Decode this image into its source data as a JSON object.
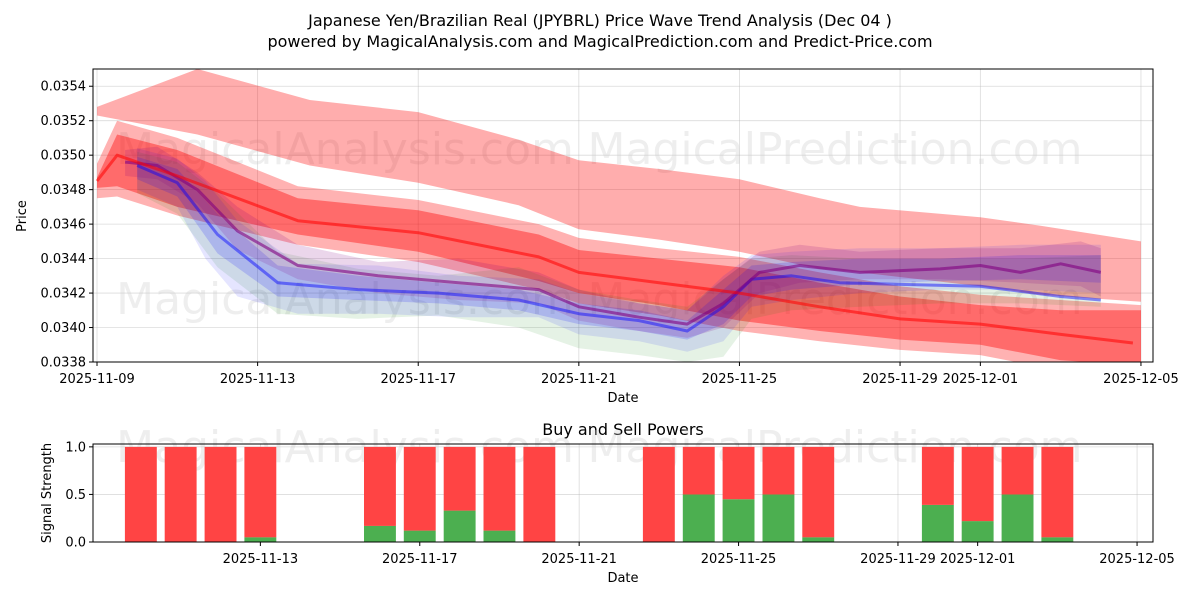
{
  "titles": {
    "line1": "Japanese Yen/Brazilian Real (JPYBRL) Price Wave Trend Analysis (Dec 04 )",
    "line2": "powered by MagicalAnalysis.com and MagicalPrediction.com and Predict-Price.com"
  },
  "watermarks": [
    "MagicalAnalysis.com",
    "MagicalPrediction.com"
  ],
  "colors": {
    "red": "#ff0000",
    "blue": "#0000ff",
    "green": "#008000",
    "purple": "#800080",
    "buy": "#4caf50",
    "sell": "#ff4444"
  },
  "chart_data": [
    {
      "type": "area",
      "title": "Japanese Yen/Brazilian Real (JPYBRL) Price Wave Trend Analysis (Dec 04 )",
      "xlabel": "Date",
      "ylabel": "Price",
      "xlim": [
        -0.1,
        26.3
      ],
      "ylim": [
        0.0338,
        0.0355
      ],
      "x_origin": "2025-11-09",
      "x_ticks": [
        {
          "day": 0,
          "label": "2025-11-09"
        },
        {
          "day": 4,
          "label": "2025-11-13"
        },
        {
          "day": 8,
          "label": "2025-11-17"
        },
        {
          "day": 12,
          "label": "2025-11-21"
        },
        {
          "day": 16,
          "label": "2025-11-25"
        },
        {
          "day": 20,
          "label": "2025-11-29"
        },
        {
          "day": 22,
          "label": "2025-12-01"
        },
        {
          "day": 26,
          "label": "2025-12-05"
        }
      ],
      "y_ticks": [
        {
          "value": 0.0338,
          "label": "0.0338"
        },
        {
          "value": 0.034,
          "label": "0.0340"
        },
        {
          "value": 0.0342,
          "label": "0.0342"
        },
        {
          "value": 0.0344,
          "label": "0.0344"
        },
        {
          "value": 0.0346,
          "label": "0.0346"
        },
        {
          "value": 0.0348,
          "label": "0.0348"
        },
        {
          "value": 0.035,
          "label": "0.0350"
        },
        {
          "value": 0.0352,
          "label": "0.0352"
        },
        {
          "value": 0.0354,
          "label": "0.0354"
        }
      ],
      "grid": true,
      "bands": [
        {
          "name": "upper red band",
          "color": "red",
          "opacity": 0.32,
          "x": [
            0,
            2.5,
            5.3,
            8,
            10.5,
            12,
            14,
            16,
            18,
            19,
            22,
            23.5,
            26
          ],
          "upper": [
            0.03528,
            0.0355,
            0.03532,
            0.03525,
            0.03509,
            0.03497,
            0.03492,
            0.03486,
            0.03475,
            0.0347,
            0.03464,
            0.03459,
            0.0345
          ],
          "lower": [
            0.03523,
            0.03512,
            0.03494,
            0.03484,
            0.03471,
            0.03457,
            0.03451,
            0.03444,
            0.03434,
            0.03432,
            0.03424,
            0.03419,
            0.03415
          ]
        },
        {
          "name": "lower red band outer",
          "color": "red",
          "opacity": 0.3,
          "x": [
            0,
            0.5,
            2,
            5,
            8,
            11,
            12,
            14,
            16,
            18,
            20,
            22,
            24,
            26
          ],
          "upper": [
            0.03495,
            0.0352,
            0.0351,
            0.03482,
            0.03474,
            0.0346,
            0.03452,
            0.03446,
            0.03441,
            0.03432,
            0.03424,
            0.03419,
            0.03416,
            0.03413
          ],
          "lower": [
            0.03475,
            0.03476,
            0.03465,
            0.03448,
            0.03438,
            0.03422,
            0.03414,
            0.03407,
            0.03398,
            0.03392,
            0.03387,
            0.03384,
            0.03375,
            0.03372
          ]
        },
        {
          "name": "lower red band inner",
          "color": "red",
          "opacity": 0.4,
          "x": [
            0,
            0.5,
            2,
            5,
            8,
            11,
            12,
            14,
            16,
            18,
            20,
            22,
            24,
            26
          ],
          "upper": [
            0.03487,
            0.03512,
            0.03503,
            0.03475,
            0.03468,
            0.03454,
            0.03445,
            0.0344,
            0.03435,
            0.03426,
            0.03418,
            0.03413,
            0.0341,
            0.0341
          ],
          "lower": [
            0.03481,
            0.03482,
            0.0347,
            0.03454,
            0.03444,
            0.03427,
            0.0342,
            0.03413,
            0.03404,
            0.03398,
            0.03393,
            0.0339,
            0.03381,
            0.03378
          ]
        },
        {
          "name": "green forecast shade",
          "color": "green",
          "opacity": 0.1,
          "x": [
            1,
            2,
            3,
            4.5,
            6.5,
            8.5,
            10.5,
            12,
            13.5,
            14.7,
            15.6,
            16.3,
            17.3,
            19,
            21,
            23,
            25
          ],
          "upper": [
            0.03502,
            0.03496,
            0.03478,
            0.03444,
            0.03434,
            0.0343,
            0.03435,
            0.03422,
            0.03416,
            0.03412,
            0.03428,
            0.0344,
            0.03442,
            0.0344,
            0.0344,
            0.0344,
            0.03442
          ],
          "lower": [
            0.03478,
            0.03466,
            0.03435,
            0.03408,
            0.03405,
            0.03407,
            0.034,
            0.03388,
            0.03384,
            0.0338,
            0.03383,
            0.03405,
            0.0341,
            0.03412,
            0.03414,
            0.03414,
            0.03412
          ]
        },
        {
          "name": "blue forecast shade outer",
          "color": "blue",
          "opacity": 0.1,
          "x": [
            1,
            2,
            2.7,
            3.5,
            5,
            7,
            9,
            11,
            12,
            13.5,
            14.7,
            15.6,
            16.3,
            17.3,
            19,
            21,
            23,
            25
          ],
          "upper": [
            0.03504,
            0.03498,
            0.03485,
            0.03462,
            0.03437,
            0.03436,
            0.0343,
            0.03428,
            0.0342,
            0.03414,
            0.0341,
            0.0343,
            0.03442,
            0.03444,
            0.03446,
            0.03446,
            0.03448,
            0.03448
          ],
          "lower": [
            0.0348,
            0.0347,
            0.0344,
            0.03418,
            0.03408,
            0.03408,
            0.03406,
            0.03406,
            0.03396,
            0.03392,
            0.03386,
            0.03392,
            0.03412,
            0.03416,
            0.0342,
            0.03422,
            0.03422,
            0.0342
          ]
        },
        {
          "name": "blue forecast shade inner",
          "color": "blue",
          "opacity": 0.16,
          "x": [
            1,
            2,
            3,
            4.5,
            6.5,
            8.5,
            10.5,
            12,
            13.5,
            14.7,
            15.6,
            16.3,
            17.3,
            19,
            21,
            23,
            25
          ],
          "upper": [
            0.03499,
            0.03492,
            0.03466,
            0.03436,
            0.0343,
            0.03426,
            0.03422,
            0.03414,
            0.0341,
            0.03404,
            0.03422,
            0.03436,
            0.03438,
            0.0344,
            0.0344,
            0.03442,
            0.03442
          ],
          "lower": [
            0.03486,
            0.03476,
            0.03443,
            0.03418,
            0.03416,
            0.03414,
            0.0341,
            0.03402,
            0.03398,
            0.03393,
            0.03402,
            0.03418,
            0.03422,
            0.03425,
            0.03427,
            0.03428,
            0.03426
          ]
        },
        {
          "name": "purple forecast shade",
          "color": "purple",
          "opacity": 0.16,
          "x": [
            0.7,
            1.5,
            2.5,
            3.5,
            5,
            7,
            9,
            11,
            12,
            13.5,
            14.7,
            15.6,
            16.5,
            17.5,
            19,
            21,
            23,
            24.5,
            25
          ],
          "upper": [
            0.03503,
            0.03505,
            0.0349,
            0.0347,
            0.03448,
            0.03438,
            0.0344,
            0.03432,
            0.03422,
            0.03414,
            0.0341,
            0.03428,
            0.03444,
            0.03448,
            0.03444,
            0.03446,
            0.03446,
            0.0345,
            0.03446
          ],
          "lower": [
            0.03488,
            0.03486,
            0.03472,
            0.03445,
            0.03428,
            0.0342,
            0.03416,
            0.03414,
            0.03404,
            0.03398,
            0.03394,
            0.034,
            0.0342,
            0.03426,
            0.03428,
            0.03428,
            0.03426,
            0.03424,
            0.03418
          ]
        }
      ],
      "lines": [
        {
          "name": "blue forecast line",
          "color": "blue",
          "opacity": 0.45,
          "x": [
            1,
            2,
            3,
            4.5,
            6.5,
            8.5,
            10.5,
            12,
            13.5,
            14.7,
            15.6,
            16.3,
            17.3,
            18.5,
            20,
            22,
            24,
            25
          ],
          "y": [
            0.03494,
            0.03484,
            0.03454,
            0.03426,
            0.03422,
            0.0342,
            0.03416,
            0.03408,
            0.03404,
            0.03398,
            0.03412,
            0.03428,
            0.0343,
            0.03426,
            0.03425,
            0.03424,
            0.03418,
            0.03416
          ]
        },
        {
          "name": "purple forecast line",
          "color": "purple",
          "opacity": 0.6,
          "x": [
            0.7,
            1.5,
            2.5,
            3.5,
            5,
            7,
            9,
            11,
            12,
            13.5,
            14.7,
            15.6,
            16.5,
            17.5,
            19,
            21,
            22,
            23,
            24,
            25
          ],
          "y": [
            0.03496,
            0.03494,
            0.0348,
            0.03456,
            0.03436,
            0.0343,
            0.03426,
            0.03422,
            0.03412,
            0.03406,
            0.03402,
            0.03414,
            0.03432,
            0.03436,
            0.03432,
            0.03434,
            0.03436,
            0.03432,
            0.03437,
            0.03432
          ]
        },
        {
          "name": "red trend line",
          "color": "red",
          "opacity": 0.55,
          "x": [
            0,
            0.5,
            2,
            5,
            8,
            11,
            12,
            14,
            16,
            18,
            20,
            22,
            24,
            25.8
          ],
          "y": [
            0.03485,
            0.035,
            0.03488,
            0.03462,
            0.03455,
            0.03441,
            0.03432,
            0.03426,
            0.0342,
            0.03412,
            0.03405,
            0.03402,
            0.03396,
            0.03391
          ]
        }
      ]
    },
    {
      "type": "bar",
      "title": "Buy and Sell Powers",
      "xlabel": "Date",
      "ylabel": "Signal Strength",
      "xlim": [
        -0.2,
        26.4
      ],
      "ylim": [
        0,
        1.03
      ],
      "x_origin": "2025-11-09",
      "x_ticks": [
        {
          "day": 4,
          "label": "2025-11-13"
        },
        {
          "day": 8,
          "label": "2025-11-17"
        },
        {
          "day": 12,
          "label": "2025-11-21"
        },
        {
          "day": 16,
          "label": "2025-11-25"
        },
        {
          "day": 20,
          "label": "2025-11-29"
        },
        {
          "day": 22,
          "label": "2025-12-01"
        },
        {
          "day": 26,
          "label": "2025-12-05"
        }
      ],
      "y_ticks": [
        {
          "value": 0,
          "label": "0.0"
        },
        {
          "value": 0.5,
          "label": "0.5"
        },
        {
          "value": 1,
          "label": "1.0"
        }
      ],
      "bar_width_days": 0.8,
      "series": [
        {
          "name": "Buy",
          "color": "buy",
          "days": [
            1,
            2,
            3,
            4,
            7,
            8,
            9,
            10,
            11,
            14,
            15,
            16,
            17,
            18,
            21,
            22,
            23,
            24
          ],
          "values": [
            0,
            0,
            0,
            0.05,
            0.17,
            0.12,
            0.33,
            0.12,
            0,
            0,
            0.5,
            0.45,
            0.5,
            0.05,
            0.39,
            0.22,
            0.5,
            0.05
          ]
        },
        {
          "name": "Sell",
          "color": "sell",
          "days": [
            1,
            2,
            3,
            4,
            7,
            8,
            9,
            10,
            11,
            14,
            15,
            16,
            17,
            18,
            21,
            22,
            23,
            24
          ],
          "values": [
            1,
            1,
            1,
            0.95,
            0.83,
            0.88,
            0.67,
            0.88,
            1,
            1,
            0.5,
            0.55,
            0.5,
            0.95,
            0.61,
            0.78,
            0.5,
            0.95
          ]
        }
      ]
    }
  ]
}
